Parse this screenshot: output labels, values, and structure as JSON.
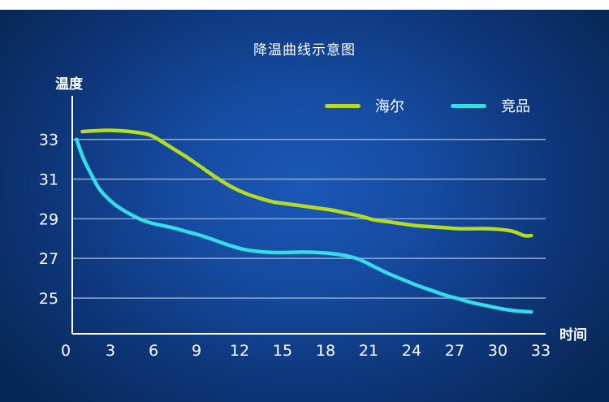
{
  "chart_data": {
    "type": "line",
    "title": "降温曲线示意图",
    "ylabel": "温度",
    "xlabel": "时间",
    "x_ticks": [
      "0",
      "3",
      "6",
      "9",
      "12",
      "15",
      "18",
      "21",
      "24",
      "27",
      "30",
      "33"
    ],
    "y_ticks": [
      "25",
      "27",
      "29",
      "31",
      "33"
    ],
    "xlim": [
      0,
      33
    ],
    "ylim": [
      23.2,
      35.2
    ],
    "grid": true,
    "legend_position": "top-right",
    "series": [
      {
        "name": "海尔",
        "color": "#b5dc23",
        "x": [
          0.7,
          2,
          3,
          4,
          5,
          5.5,
          6,
          7,
          8,
          9,
          10,
          11,
          12,
          13,
          14,
          15,
          16,
          17,
          18,
          19,
          20,
          21,
          22,
          23,
          24,
          25,
          26,
          27,
          28,
          29,
          30,
          30.8,
          31.5,
          32
        ],
        "y": [
          33.4,
          33.45,
          33.45,
          33.4,
          33.3,
          33.2,
          33.0,
          32.55,
          32.1,
          31.6,
          31.1,
          30.65,
          30.3,
          30.05,
          29.85,
          29.75,
          29.65,
          29.55,
          29.45,
          29.3,
          29.15,
          28.95,
          28.85,
          28.75,
          28.65,
          28.6,
          28.55,
          28.5,
          28.5,
          28.5,
          28.45,
          28.35,
          28.15,
          28.15
        ]
      },
      {
        "name": "竞品",
        "color": "#35dde8",
        "x": [
          0.3,
          0.8,
          1.5,
          2,
          3,
          4,
          5,
          6,
          7,
          8,
          9,
          10,
          11,
          12,
          13,
          14,
          15,
          16,
          17,
          18,
          19,
          20,
          21,
          22,
          23,
          24,
          25,
          26,
          27,
          28,
          29,
          30,
          31,
          32
        ],
        "y": [
          33.0,
          32.0,
          31.0,
          30.4,
          29.7,
          29.25,
          28.9,
          28.7,
          28.55,
          28.35,
          28.15,
          27.9,
          27.65,
          27.45,
          27.35,
          27.3,
          27.3,
          27.32,
          27.3,
          27.25,
          27.15,
          26.95,
          26.6,
          26.25,
          25.95,
          25.65,
          25.4,
          25.15,
          24.95,
          24.75,
          24.6,
          24.45,
          24.35,
          24.3
        ]
      }
    ]
  }
}
